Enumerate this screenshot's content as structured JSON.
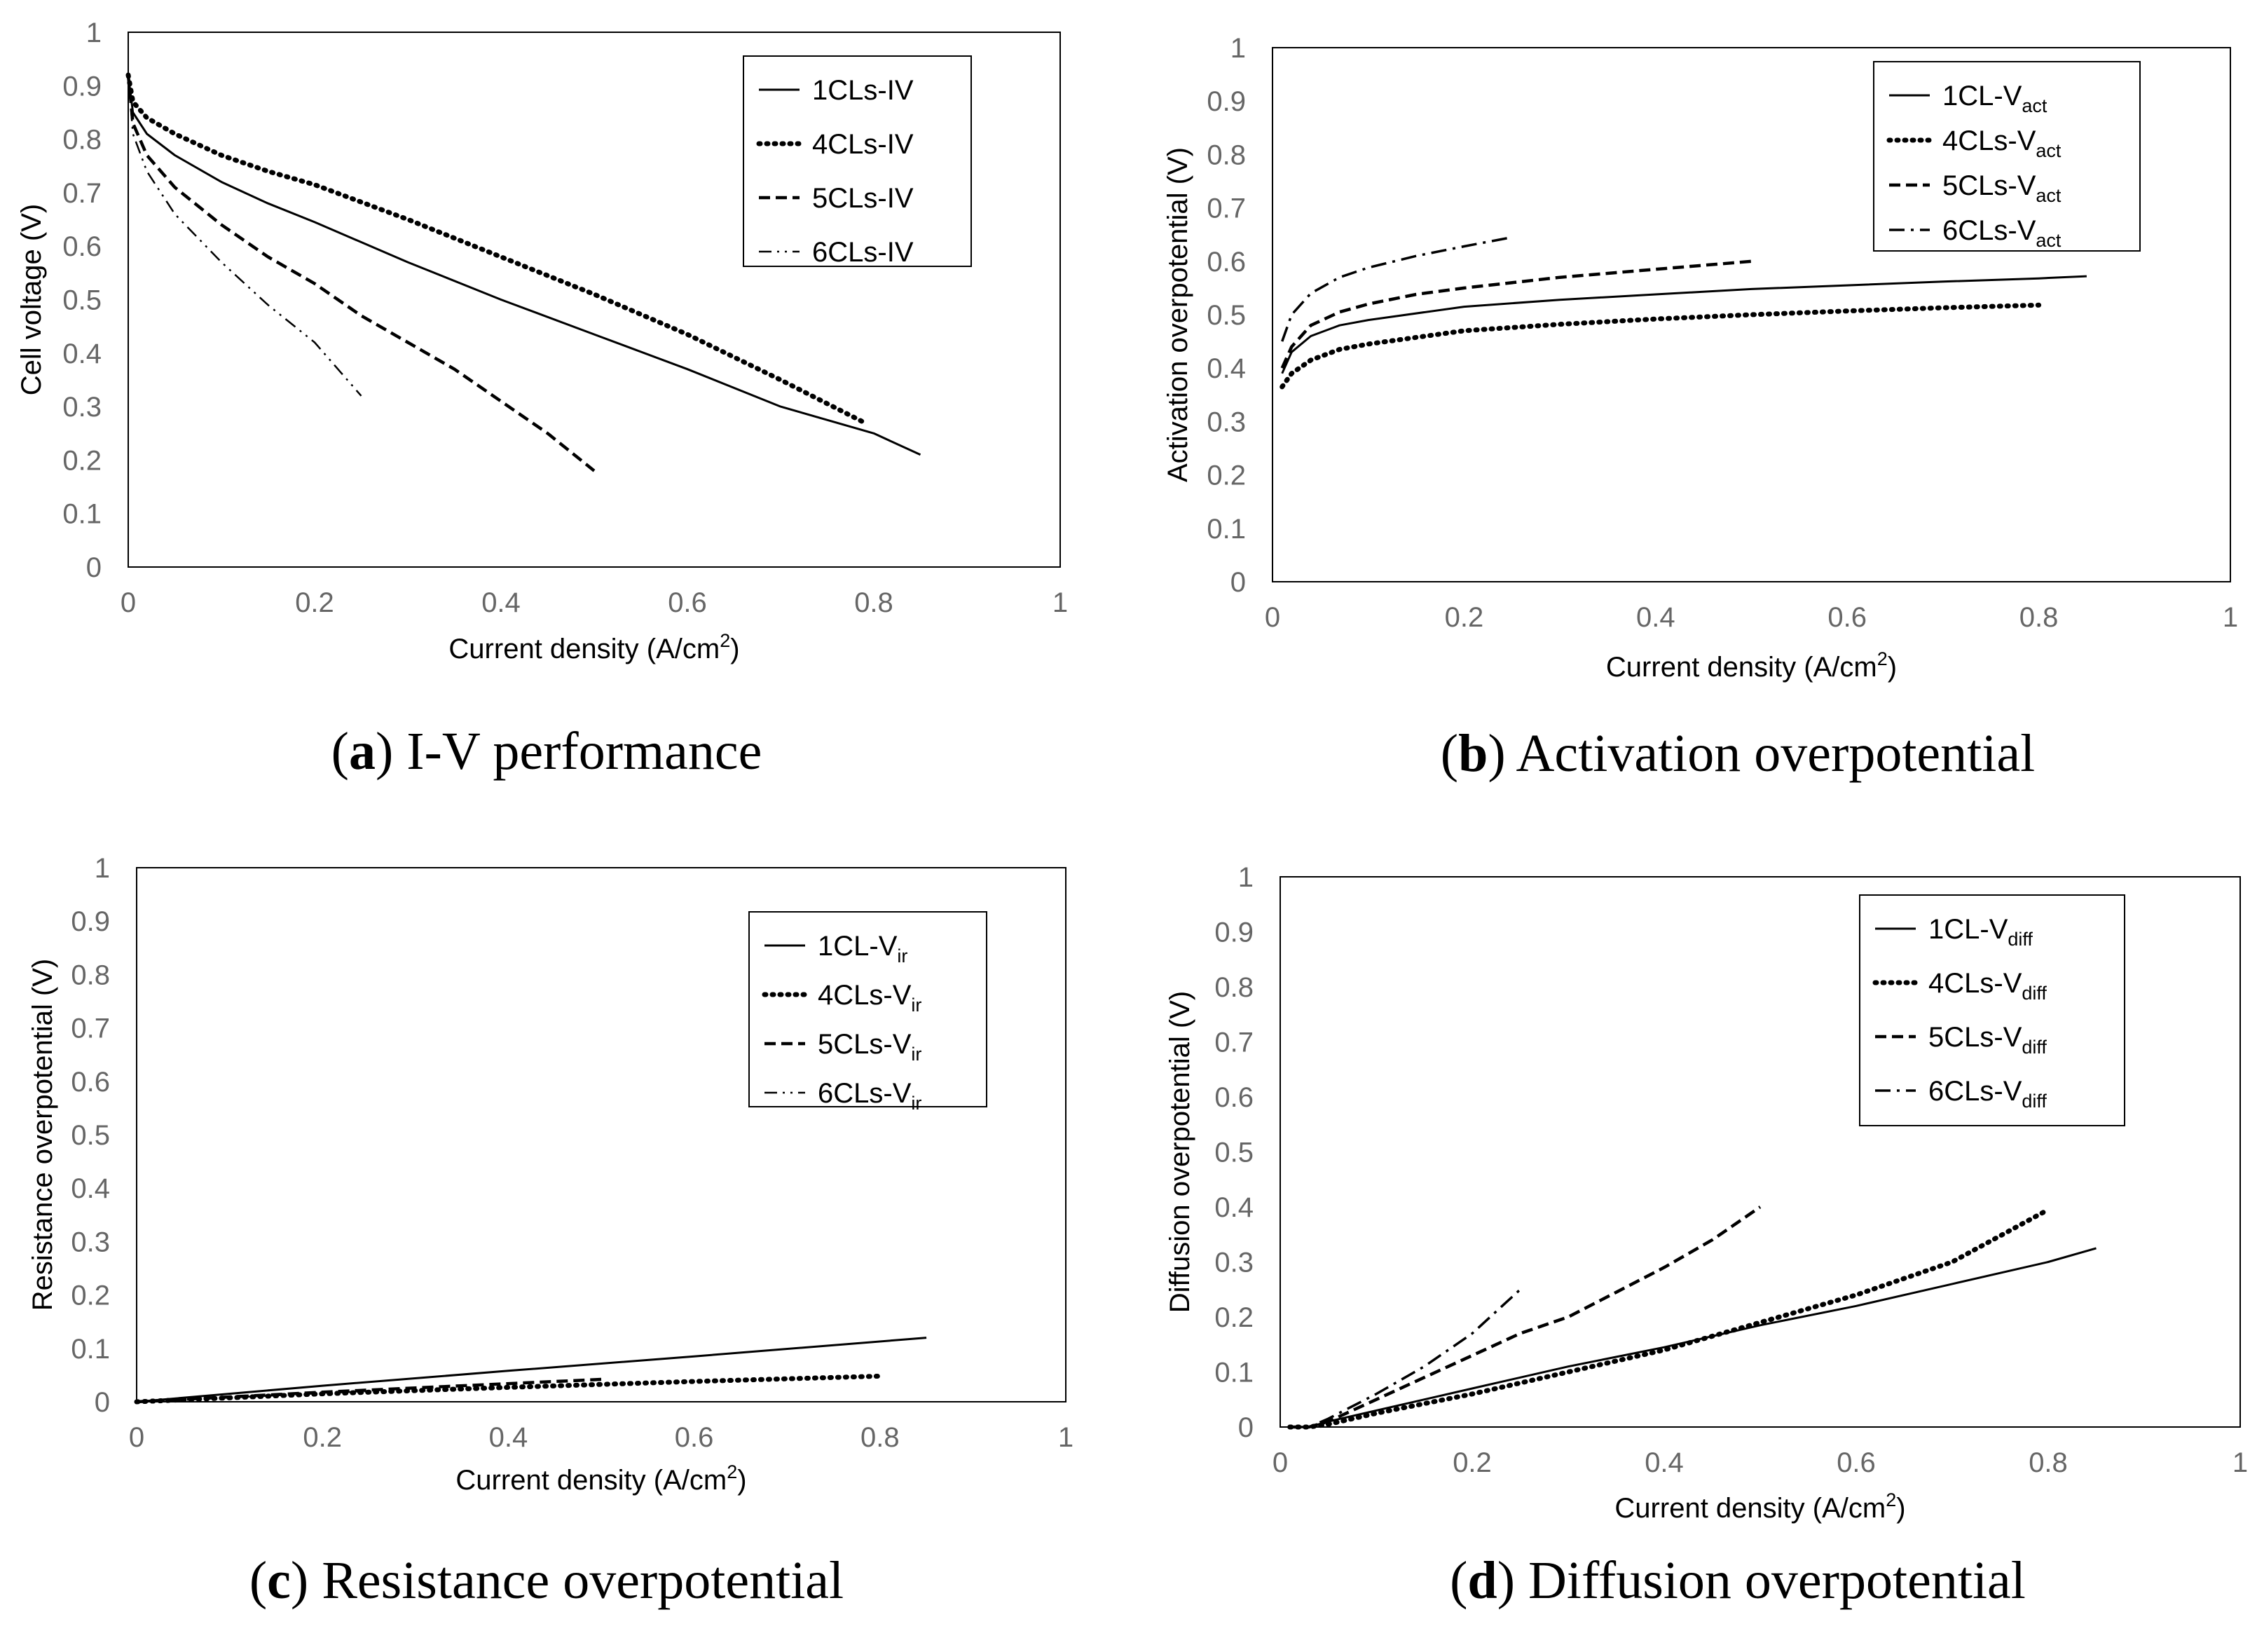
{
  "chart_data": [
    {
      "type": "line",
      "panel_letter": "a",
      "caption": "I-V performance",
      "xlabel": "Current density (A/cm",
      "xlabel_sup": "2",
      "xlabel_end": ")",
      "ylabel": "Cell voltage (V)",
      "xlim": [
        0,
        1
      ],
      "ylim": [
        0,
        1
      ],
      "x_ticks": [
        0,
        0.2,
        0.4,
        0.6,
        0.8,
        1
      ],
      "y_ticks": [
        0,
        0.1,
        0.2,
        0.3,
        0.4,
        0.5,
        0.6,
        0.7,
        0.8,
        0.9,
        1
      ],
      "x_tick_labels": [
        "0",
        "0.2",
        "0.4",
        "0.6",
        "0.8",
        "1"
      ],
      "y_tick_labels": [
        "0",
        "0.1",
        "0.2",
        "0.3",
        "0.4",
        "0.5",
        "0.6",
        "0.7",
        "0.8",
        "0.9",
        "1"
      ],
      "legend": "top-right",
      "series": [
        {
          "name": "1CLs-IV",
          "name_sub": "",
          "style": "solid",
          "x": [
            0,
            0.005,
            0.02,
            0.05,
            0.1,
            0.15,
            0.2,
            0.3,
            0.4,
            0.5,
            0.6,
            0.7,
            0.8,
            0.85
          ],
          "y": [
            0.92,
            0.85,
            0.81,
            0.77,
            0.72,
            0.68,
            0.645,
            0.57,
            0.5,
            0.435,
            0.37,
            0.3,
            0.25,
            0.21
          ]
        },
        {
          "name": "4CLs-IV",
          "name_sub": "",
          "style": "dotted",
          "x": [
            0,
            0.005,
            0.02,
            0.05,
            0.1,
            0.15,
            0.2,
            0.3,
            0.4,
            0.5,
            0.6,
            0.7,
            0.79
          ],
          "y": [
            0.92,
            0.87,
            0.84,
            0.81,
            0.77,
            0.74,
            0.715,
            0.65,
            0.58,
            0.51,
            0.435,
            0.35,
            0.27
          ]
        },
        {
          "name": "5CLs-IV",
          "name_sub": "",
          "style": "dashed",
          "x": [
            0,
            0.005,
            0.02,
            0.05,
            0.1,
            0.15,
            0.2,
            0.25,
            0.3,
            0.35,
            0.4,
            0.45,
            0.5
          ],
          "y": [
            0.92,
            0.83,
            0.77,
            0.71,
            0.64,
            0.58,
            0.53,
            0.47,
            0.42,
            0.37,
            0.31,
            0.25,
            0.18
          ]
        },
        {
          "name": "6CLs-IV",
          "name_sub": "",
          "style": "dashdotdot",
          "x": [
            0,
            0.005,
            0.02,
            0.05,
            0.1,
            0.15,
            0.2,
            0.25
          ],
          "y": [
            0.92,
            0.81,
            0.74,
            0.66,
            0.57,
            0.49,
            0.42,
            0.32
          ]
        }
      ]
    },
    {
      "type": "line",
      "panel_letter": "b",
      "caption": "Activation overpotential",
      "xlabel": "Current density (A/cm",
      "xlabel_sup": "2",
      "xlabel_end": ")",
      "ylabel": "Activation overpotential (V)",
      "xlim": [
        0,
        1
      ],
      "ylim": [
        0,
        1
      ],
      "x_ticks": [
        0,
        0.2,
        0.4,
        0.6,
        0.8,
        1
      ],
      "y_ticks": [
        0,
        0.1,
        0.2,
        0.3,
        0.4,
        0.5,
        0.6,
        0.7,
        0.8,
        0.9,
        1
      ],
      "x_tick_labels": [
        "0",
        "0.2",
        "0.4",
        "0.6",
        "0.8",
        "1"
      ],
      "y_tick_labels": [
        "0",
        "0.1",
        "0.2",
        "0.3",
        "0.4",
        "0.5",
        "0.6",
        "0.7",
        "0.8",
        "0.9",
        "1"
      ],
      "legend": "top-right",
      "series": [
        {
          "name": "1CL-V",
          "name_sub": "act",
          "style": "solid",
          "x": [
            0.01,
            0.02,
            0.04,
            0.07,
            0.1,
            0.2,
            0.3,
            0.4,
            0.5,
            0.6,
            0.7,
            0.8,
            0.85
          ],
          "y": [
            0.39,
            0.43,
            0.46,
            0.48,
            0.49,
            0.515,
            0.528,
            0.538,
            0.548,
            0.555,
            0.562,
            0.568,
            0.572
          ]
        },
        {
          "name": "4CLs-V",
          "name_sub": "act",
          "style": "dotted",
          "x": [
            0.01,
            0.02,
            0.04,
            0.07,
            0.1,
            0.2,
            0.3,
            0.4,
            0.5,
            0.6,
            0.7,
            0.8
          ],
          "y": [
            0.365,
            0.39,
            0.415,
            0.435,
            0.445,
            0.47,
            0.482,
            0.492,
            0.5,
            0.507,
            0.513,
            0.518
          ]
        },
        {
          "name": "5CLs-V",
          "name_sub": "act",
          "style": "dashed",
          "x": [
            0.01,
            0.02,
            0.04,
            0.07,
            0.1,
            0.15,
            0.2,
            0.3,
            0.4,
            0.5
          ],
          "y": [
            0.4,
            0.44,
            0.48,
            0.505,
            0.52,
            0.538,
            0.55,
            0.57,
            0.585,
            0.6
          ]
        },
        {
          "name": "6CLs-V",
          "name_sub": "act",
          "style": "dashdot",
          "x": [
            0.01,
            0.02,
            0.04,
            0.07,
            0.1,
            0.15,
            0.2,
            0.25
          ],
          "y": [
            0.45,
            0.5,
            0.54,
            0.57,
            0.588,
            0.61,
            0.628,
            0.645
          ]
        }
      ]
    },
    {
      "type": "line",
      "panel_letter": "c",
      "caption": "Resistance overpotential",
      "xlabel": "Current density (A/cm",
      "xlabel_sup": "2",
      "xlabel_end": ")",
      "ylabel": "Resistance overpotential (V)",
      "xlim": [
        0,
        1
      ],
      "ylim": [
        0,
        1
      ],
      "x_ticks": [
        0,
        0.2,
        0.4,
        0.6,
        0.8,
        1
      ],
      "y_ticks": [
        0,
        0.1,
        0.2,
        0.3,
        0.4,
        0.5,
        0.6,
        0.7,
        0.8,
        0.9,
        1
      ],
      "x_tick_labels": [
        "0",
        "0.2",
        "0.4",
        "0.6",
        "0.8",
        "1"
      ],
      "y_tick_labels": [
        "0",
        "0.1",
        "0.2",
        "0.3",
        "0.4",
        "0.5",
        "0.6",
        "0.7",
        "0.8",
        "0.9",
        "1"
      ],
      "legend": "top-right",
      "series": [
        {
          "name": "1CL-V",
          "name_sub": "ir",
          "style": "solid",
          "x": [
            0,
            0.2,
            0.4,
            0.6,
            0.85
          ],
          "y": [
            0,
            0.03,
            0.058,
            0.085,
            0.12
          ]
        },
        {
          "name": "4CLs-V",
          "name_sub": "ir",
          "style": "dotted",
          "x": [
            0,
            0.2,
            0.4,
            0.6,
            0.8
          ],
          "y": [
            0,
            0.015,
            0.027,
            0.038,
            0.048
          ]
        },
        {
          "name": "5CLs-V",
          "name_sub": "ir",
          "style": "dashed",
          "x": [
            0,
            0.1,
            0.2,
            0.3,
            0.4,
            0.5
          ],
          "y": [
            0,
            0.009,
            0.018,
            0.026,
            0.034,
            0.042
          ]
        },
        {
          "name": "6CLs-V",
          "name_sub": "ir",
          "style": "dashdotdot",
          "x": [
            0,
            0.1,
            0.2,
            0.25
          ],
          "y": [
            0,
            0.008,
            0.016,
            0.02
          ]
        }
      ]
    },
    {
      "type": "line",
      "panel_letter": "d",
      "caption": "Diffusion overpotential",
      "xlabel": "Current density (A/cm",
      "xlabel_sup": "2",
      "xlabel_end": ")",
      "ylabel": "Diffusion overpotential (V)",
      "xlim": [
        0,
        1
      ],
      "ylim": [
        0,
        1
      ],
      "x_ticks": [
        0,
        0.2,
        0.4,
        0.6,
        0.8,
        1
      ],
      "y_ticks": [
        0,
        0.1,
        0.2,
        0.3,
        0.4,
        0.5,
        0.6,
        0.7,
        0.8,
        0.9,
        1
      ],
      "x_tick_labels": [
        "0",
        "0.2",
        "0.4",
        "0.6",
        "0.8",
        "1"
      ],
      "y_tick_labels": [
        "0",
        "0.1",
        "0.2",
        "0.3",
        "0.4",
        "0.5",
        "0.6",
        "0.7",
        "0.8",
        "0.9",
        "1"
      ],
      "legend": "top-right",
      "series": [
        {
          "name": "1CL-V",
          "name_sub": "diff",
          "style": "solid",
          "x": [
            0.01,
            0.03,
            0.05,
            0.1,
            0.2,
            0.3,
            0.4,
            0.5,
            0.6,
            0.7,
            0.8,
            0.85
          ],
          "y": [
            0,
            0,
            0.01,
            0.03,
            0.07,
            0.11,
            0.145,
            0.185,
            0.22,
            0.26,
            0.3,
            0.325
          ]
        },
        {
          "name": "4CLs-V",
          "name_sub": "diff",
          "style": "dotted",
          "x": [
            0.01,
            0.03,
            0.05,
            0.1,
            0.2,
            0.3,
            0.4,
            0.5,
            0.6,
            0.7,
            0.8
          ],
          "y": [
            0,
            0,
            0.005,
            0.025,
            0.06,
            0.1,
            0.14,
            0.19,
            0.24,
            0.3,
            0.395
          ]
        },
        {
          "name": "5CLs-V",
          "name_sub": "diff",
          "style": "dashed",
          "x": [
            0.01,
            0.03,
            0.05,
            0.1,
            0.15,
            0.2,
            0.25,
            0.3,
            0.35,
            0.4,
            0.45,
            0.5
          ],
          "y": [
            0,
            0,
            0.01,
            0.05,
            0.09,
            0.13,
            0.17,
            0.2,
            0.245,
            0.29,
            0.34,
            0.4
          ]
        },
        {
          "name": "6CLs-V",
          "name_sub": "diff",
          "style": "dashdot",
          "x": [
            0.01,
            0.03,
            0.05,
            0.1,
            0.15,
            0.2,
            0.25
          ],
          "y": [
            0,
            0,
            0.015,
            0.06,
            0.11,
            0.17,
            0.25
          ]
        }
      ]
    }
  ]
}
